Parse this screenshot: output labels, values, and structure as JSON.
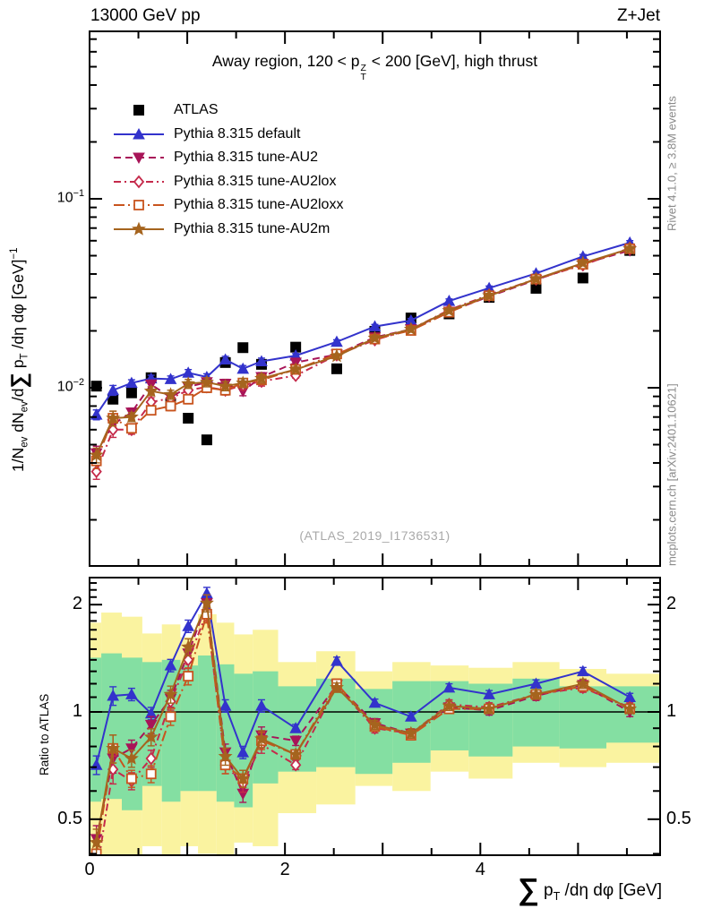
{
  "header": {
    "left": "13000 GeV pp",
    "right": "Z+Jet"
  },
  "side_notes": {
    "top": "Rivet 4.1.0, ≥ 3.8M events",
    "bottom": "mcplots.cern.ch [arXiv:2401.10621]"
  },
  "watermark": "(ATLAS_2019_I1736531)",
  "panel_title_parts": [
    {
      "t": "Away region, 120 < p"
    },
    {
      "supsub": [
        "Z",
        "T"
      ]
    },
    {
      "t": " < 200 [GeV], high thrust"
    }
  ],
  "axes": {
    "y_title_parts": [
      {
        "t": "1/N"
      },
      {
        "sub": "ev"
      },
      {
        "t": " dN"
      },
      {
        "sub": "ev"
      },
      {
        "t": "/d"
      },
      {
        "big": "∑"
      },
      {
        "t": " p"
      },
      {
        "sub": "T"
      },
      {
        "t": " /dη dφ  [GeV]"
      },
      {
        "sup": "−1"
      }
    ],
    "x_title_parts": [
      {
        "big": "∑"
      },
      {
        "t": " p"
      },
      {
        "sub": "T"
      },
      {
        "t": " /dη dφ [GeV]"
      }
    ],
    "ratio_label": "Ratio to ATLAS",
    "x_tick_labels": [
      "0",
      "2",
      "4"
    ],
    "x_tick_values": [
      0,
      2,
      4
    ],
    "main_y_tick_labels": [
      {
        "base": "10",
        "exp": "−1",
        "value": 0.1
      },
      {
        "base": "10",
        "exp": "−2",
        "value": 0.01
      }
    ],
    "ratio_tick_labels": [
      {
        "label": "2",
        "value": 2
      },
      {
        "label": "1",
        "value": 1
      },
      {
        "label": "0.5",
        "value": 0.5
      }
    ],
    "x_range": [
      0,
      5.84
    ],
    "main_y_range": [
      0.00115,
      0.77
    ],
    "ratio_y_range": [
      0.396,
      2.38
    ],
    "x_minor_step": 0.5,
    "x_major_step": 1
  },
  "chart_data": {
    "type": "line",
    "title": "Away region, 120 < pT(Z) < 200 [GeV], high thrust",
    "xlabel": "Sum pT /deta dphi [GeV]",
    "ylabel": "1/Nev dNev/d Sum pT /deta dphi [GeV]^-1",
    "ratio_ylabel": "Ratio to ATLAS",
    "x_log": false,
    "y_log": true,
    "x": [
      0.07,
      0.24,
      0.43,
      0.63,
      0.83,
      1.01,
      1.2,
      1.39,
      1.57,
      1.76,
      2.11,
      2.53,
      2.92,
      3.29,
      3.68,
      4.09,
      4.57,
      5.05,
      5.53
    ],
    "series": [
      {
        "name": "ATLAS",
        "short": "atlas",
        "color": "#000000",
        "marker": "square",
        "filled": true,
        "line": "none",
        "values": [
          0.0102,
          0.0087,
          0.0094,
          0.0113,
          0.0082,
          0.0069,
          0.0053,
          0.0136,
          0.0163,
          0.0133,
          0.0164,
          0.0126,
          0.0199,
          0.0234,
          0.0246,
          0.0301,
          0.0336,
          0.0381,
          0.0533
        ],
        "ratio": [
          1,
          1,
          1,
          1,
          1,
          1,
          1,
          1,
          1,
          1,
          1,
          1,
          1,
          1,
          1,
          1,
          1,
          1,
          1
        ]
      },
      {
        "name": "Pythia 8.315 default",
        "short": "pythia-default",
        "color": "#3333cc",
        "marker": "triangle-up",
        "filled": true,
        "line": "solid",
        "values": [
          0.0072,
          0.0097,
          0.0106,
          0.0112,
          0.0111,
          0.012,
          0.0114,
          0.0141,
          0.0126,
          0.0138,
          0.0148,
          0.0175,
          0.0211,
          0.0227,
          0.0288,
          0.0337,
          0.0403,
          0.0495,
          0.0586
        ],
        "ratio": [
          0.71,
          1.11,
          1.12,
          0.99,
          1.35,
          1.74,
          2.15,
          1.04,
          0.77,
          1.04,
          0.9,
          1.39,
          1.06,
          0.97,
          1.17,
          1.12,
          1.2,
          1.3,
          1.1
        ]
      },
      {
        "name": "Pythia 8.315 tune-AU2",
        "short": "tune-au2",
        "color": "#a81458",
        "marker": "triangle-down",
        "filled": true,
        "line": "dash",
        "values": [
          0.0045,
          0.0064,
          0.0074,
          0.0104,
          0.0089,
          0.0101,
          0.0107,
          0.0105,
          0.0096,
          0.0114,
          0.0136,
          0.015,
          0.0185,
          0.0204,
          0.0253,
          0.0304,
          0.0373,
          0.0453,
          0.0533
        ],
        "ratio": [
          0.44,
          0.74,
          0.79,
          0.92,
          1.09,
          1.46,
          2.02,
          0.77,
          0.59,
          0.86,
          0.83,
          1.19,
          0.93,
          0.87,
          1.03,
          1.01,
          1.11,
          1.19,
          1.0
        ]
      },
      {
        "name": "Pythia 8.315 tune-AU2lox",
        "short": "tune-au2lox",
        "color": "#c52a4b",
        "marker": "diamond",
        "filled": false,
        "line": "dashdot",
        "values": [
          0.0036,
          0.006,
          0.006,
          0.0084,
          0.0088,
          0.0097,
          0.0101,
          0.0097,
          0.0103,
          0.0108,
          0.0116,
          0.0149,
          0.0179,
          0.0204,
          0.0258,
          0.031,
          0.0376,
          0.0446,
          0.0549
        ],
        "ratio": [
          0.35,
          0.69,
          0.64,
          0.74,
          1.07,
          1.4,
          1.9,
          0.71,
          0.63,
          0.81,
          0.71,
          1.18,
          0.9,
          0.87,
          1.05,
          1.03,
          1.12,
          1.17,
          1.03
        ]
      },
      {
        "name": "Pythia 8.315 tune-AU2loxx",
        "short": "tune-au2loxx",
        "color": "#c8541e",
        "marker": "square",
        "filled": false,
        "line": "dashdot2",
        "values": [
          0.0041,
          0.0069,
          0.0061,
          0.0076,
          0.008,
          0.0087,
          0.01,
          0.0097,
          0.0106,
          0.011,
          0.0125,
          0.0151,
          0.0181,
          0.0201,
          0.0251,
          0.0307,
          0.0376,
          0.045,
          0.0544
        ],
        "ratio": [
          0.4,
          0.79,
          0.65,
          0.67,
          0.97,
          1.26,
          1.88,
          0.71,
          0.65,
          0.83,
          0.76,
          1.2,
          0.91,
          0.86,
          1.02,
          1.02,
          1.12,
          1.18,
          1.02
        ]
      },
      {
        "name": "Pythia 8.315 tune-AU2m",
        "short": "tune-au2m",
        "color": "#a5641e",
        "marker": "star",
        "filled": true,
        "line": "solid",
        "values": [
          0.0044,
          0.0069,
          0.007,
          0.0096,
          0.0092,
          0.0105,
          0.0107,
          0.0102,
          0.0106,
          0.0112,
          0.0125,
          0.0147,
          0.0183,
          0.0204,
          0.0256,
          0.0307,
          0.0376,
          0.0457,
          0.0544
        ],
        "ratio": [
          0.43,
          0.79,
          0.74,
          0.85,
          1.12,
          1.52,
          2.02,
          0.75,
          0.65,
          0.84,
          0.76,
          1.17,
          0.92,
          0.87,
          1.04,
          1.02,
          1.12,
          1.2,
          1.02
        ]
      }
    ],
    "bands": {
      "yellow_color": "#faf3a0",
      "green_color": "#84dfa2",
      "edges": [
        0,
        0.12,
        0.33,
        0.54,
        0.74,
        0.93,
        1.11,
        1.3,
        1.48,
        1.67,
        1.93,
        2.32,
        2.72,
        3.1,
        3.49,
        3.88,
        4.33,
        4.81,
        5.29,
        5.84
      ],
      "yellow_lo": [
        0.28,
        0.28,
        0.32,
        0.42,
        0.35,
        0.42,
        0.4,
        0.35,
        0.43,
        0.42,
        0.52,
        0.55,
        0.62,
        0.6,
        0.68,
        0.65,
        0.72,
        0.7,
        0.72
      ],
      "yellow_hi": [
        1.78,
        1.9,
        1.85,
        1.66,
        1.76,
        1.62,
        1.88,
        1.78,
        1.65,
        1.7,
        1.38,
        1.48,
        1.3,
        1.38,
        1.35,
        1.33,
        1.38,
        1.32,
        1.28
      ],
      "green_lo": [
        0.56,
        0.57,
        0.53,
        0.62,
        0.56,
        0.6,
        0.6,
        0.56,
        0.54,
        0.63,
        0.68,
        0.7,
        0.67,
        0.72,
        0.78,
        0.75,
        0.8,
        0.79,
        0.82
      ],
      "green_hi": [
        1.42,
        1.46,
        1.42,
        1.38,
        1.4,
        1.35,
        1.44,
        1.36,
        1.28,
        1.3,
        1.18,
        1.24,
        1.16,
        1.22,
        1.22,
        1.2,
        1.24,
        1.18,
        1.18
      ]
    }
  }
}
